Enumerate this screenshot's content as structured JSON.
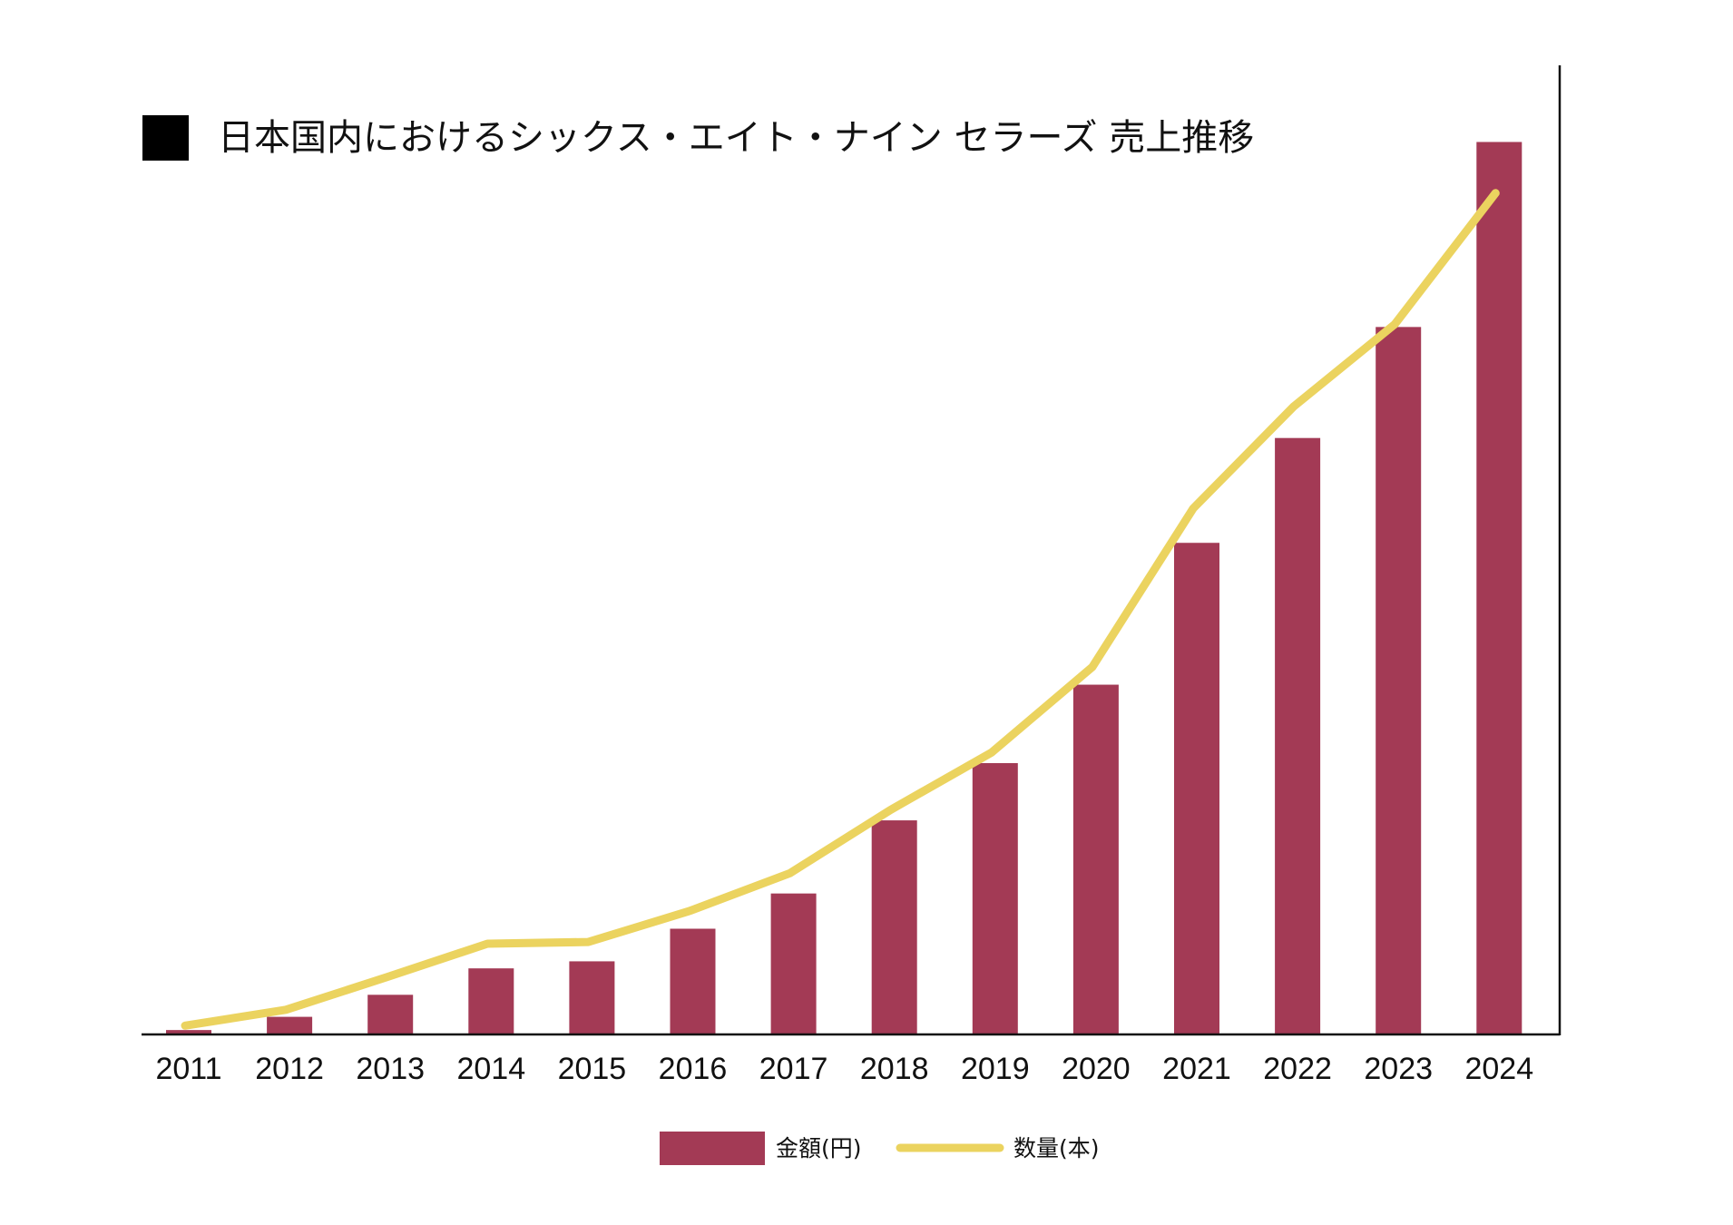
{
  "chart_data": {
    "type": "bar",
    "title": "日本国内におけるシックス・エイト・ナイン セラーズ 売上推移",
    "categories": [
      "2011",
      "2012",
      "2013",
      "2014",
      "2015",
      "2016",
      "2017",
      "2018",
      "2019",
      "2020",
      "2021",
      "2022",
      "2023",
      "2024"
    ],
    "series": [
      {
        "name": "金額(円)",
        "type": "bar",
        "values": [
          0.5,
          2,
          4.5,
          7.5,
          8.3,
          12,
          16,
          24.3,
          30.8,
          39.7,
          55.8,
          67.7,
          80.3,
          101.3
        ],
        "color": "#a33a55"
      },
      {
        "name": "数量(本)",
        "type": "line",
        "values": [
          1,
          2.8,
          6.5,
          10.3,
          10.5,
          14,
          18.3,
          25.5,
          32,
          41.7,
          59.7,
          71.3,
          80.6,
          95.5
        ],
        "color": "#ebd35f"
      }
    ],
    "ylim": [
      0,
      110
    ],
    "grid": false,
    "legend_position": "bottom-center"
  }
}
